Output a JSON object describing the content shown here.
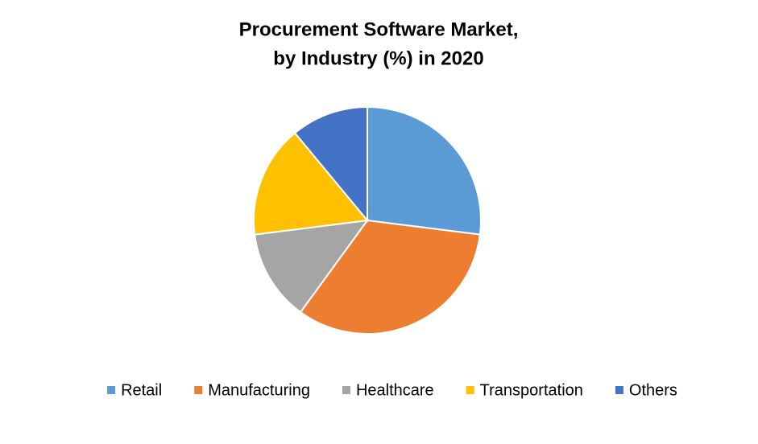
{
  "chart_data": {
    "type": "pie",
    "title": [
      "Procurement Software Market,",
      "by Industry (%) in 2020"
    ],
    "categories": [
      "Retail",
      "Manufacturing",
      "Healthcare",
      "Transportation",
      "Others"
    ],
    "values": [
      27,
      33,
      13,
      16,
      11
    ],
    "colors": [
      "#5b9bd5",
      "#ed7d31",
      "#a5a5a5",
      "#ffc000",
      "#4472c4"
    ],
    "legend": "bottom"
  }
}
